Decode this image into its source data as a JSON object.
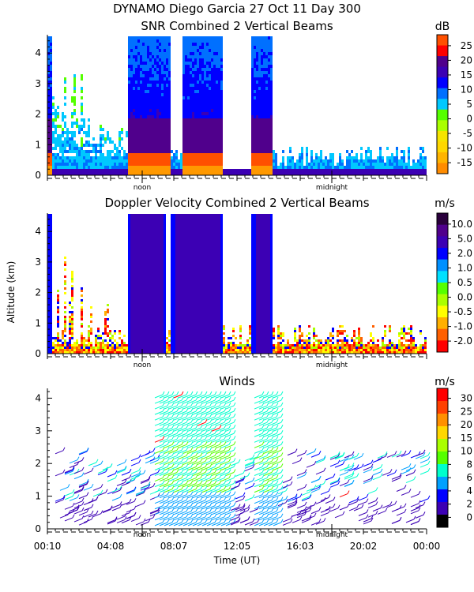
{
  "header": {
    "line1": "DYNAMO Diego Garcia  27 Oct 11 Day 300",
    "line2": "SNR Combined 2 Vertical Beams"
  },
  "colors": {
    "scale_snr": [
      "#ff8c00",
      "#ffb400",
      "#ffd700",
      "#f5e400",
      "#aaff00",
      "#55ff00",
      "#00c8ff",
      "#0070ff",
      "#0000ff",
      "#3c00b4",
      "#50008c",
      "#ff0000",
      "#ff5000"
    ],
    "scale_doppler": [
      "#ff0000",
      "#ff6000",
      "#ffb000",
      "#ffff00",
      "#aaff00",
      "#55ff00",
      "#00e0ff",
      "#0090ff",
      "#0000ff",
      "#3c00b4",
      "#50008c",
      "#2a003c"
    ],
    "scale_winds": [
      "#000000",
      "#3c00b4",
      "#0000ff",
      "#00a0ff",
      "#00ffcc",
      "#55ff00",
      "#aaff00",
      "#ffd700",
      "#ff9000",
      "#ff4000",
      "#ff0000"
    ]
  },
  "chart_data": [
    {
      "type": "heatmap",
      "title": "SNR Combined 2 Vertical Beams",
      "ylabel": "",
      "unit": "dB",
      "ylim": [
        0,
        4.6
      ],
      "yticks": [
        "0",
        "1",
        "2",
        "3",
        "4"
      ],
      "day_markers": [
        "noon",
        "midnight"
      ],
      "colorbar": {
        "labels": [
          "25",
          "20",
          "15",
          "10",
          "5",
          "0",
          "-5",
          "-10",
          "-15"
        ],
        "range": [
          -15,
          28
        ]
      }
    },
    {
      "type": "heatmap",
      "title": "Doppler Velocity Combined 2 Vertical Beams",
      "ylabel": "Altitude (km)",
      "unit": "m/s",
      "ylim": [
        0,
        4.6
      ],
      "yticks": [
        "0",
        "1",
        "2",
        "3",
        "4"
      ],
      "day_markers": [
        "noon",
        "midnight"
      ],
      "colorbar": {
        "labels": [
          "10.0",
          "5.0",
          "2.0",
          "1.0",
          "0.5",
          "0.0",
          "-0.5",
          "-1.0",
          "-2.0"
        ]
      }
    },
    {
      "type": "scatter",
      "title": "Winds",
      "xlabel": "Time (UT)",
      "unit": "m/s",
      "ylim": [
        0,
        4.3
      ],
      "yticks": [
        "0",
        "1",
        "2",
        "3",
        "4"
      ],
      "xticks": [
        "00:10",
        "04:08",
        "08:07",
        "12:05",
        "16:03",
        "20:02",
        "00:00"
      ],
      "day_markers": [
        "noon",
        "midnight"
      ],
      "colorbar": {
        "labels": [
          "30",
          "25",
          "20",
          "15",
          "10",
          "8",
          "6",
          "4",
          "2",
          "0"
        ]
      }
    }
  ]
}
